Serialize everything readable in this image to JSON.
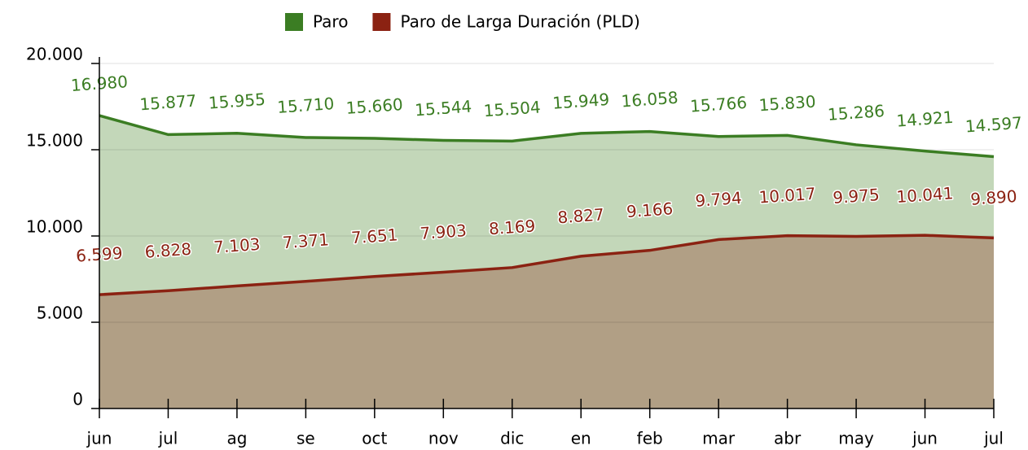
{
  "chart_data": {
    "type": "area",
    "categories": [
      "jun",
      "jul",
      "ag",
      "se",
      "oct",
      "nov",
      "dic",
      "en",
      "feb",
      "mar",
      "abr",
      "may",
      "jun",
      "jul"
    ],
    "series": [
      {
        "name": "Paro",
        "color": "#3b7d23",
        "fill": "#c3d7b9",
        "values": [
          16980,
          15877,
          15955,
          15710,
          15660,
          15544,
          15504,
          15949,
          16058,
          15766,
          15830,
          15286,
          14921,
          14597
        ],
        "value_labels": [
          "16.980",
          "15.877",
          "15.955",
          "15.710",
          "15.660",
          "15.544",
          "15.504",
          "15.949",
          "16.058",
          "15.766",
          "15.830",
          "15.286",
          "14.921",
          "14.597"
        ]
      },
      {
        "name": "Paro de Larga Duración (PLD)",
        "color": "#8b2212",
        "fill": "#b19f85",
        "values": [
          6599,
          6828,
          7103,
          7371,
          7651,
          7903,
          8169,
          8827,
          9166,
          9794,
          10017,
          9975,
          10041,
          9890
        ],
        "value_labels": [
          "6.599",
          "6.828",
          "7.103",
          "7.371",
          "7.651",
          "7.903",
          "8.169",
          "8.827",
          "9.166",
          "9.794",
          "10.017",
          "9.975",
          "10.041",
          "9.890"
        ]
      }
    ],
    "ylim": [
      0,
      20000
    ],
    "yticks": [
      {
        "value": 0,
        "label": "0"
      },
      {
        "value": 5000,
        "label": "5.000"
      },
      {
        "value": 10000,
        "label": "10.000"
      },
      {
        "value": 15000,
        "label": "15.000"
      },
      {
        "value": 20000,
        "label": "20.000"
      }
    ],
    "grid": true,
    "legend": "top"
  }
}
